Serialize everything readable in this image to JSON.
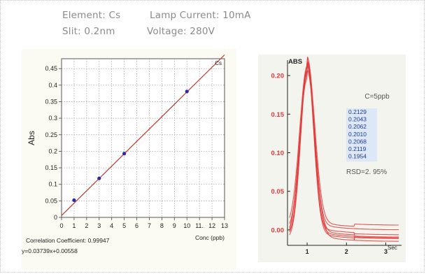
{
  "params": {
    "element": "Element: Cs",
    "lamp": "Lamp Current: 10mA",
    "slit": "Slit: 0.2nm",
    "voltage": "Voltage: 280V"
  },
  "colors": {
    "line": "#c0392b",
    "points": "#2a2aa8",
    "peak": "#e23a3a",
    "readings_text": "#1f3a93"
  },
  "chart_data": [
    {
      "type": "scatter",
      "title": "Cs",
      "xlabel": "Conc (ppb)",
      "ylabel": "Abs",
      "xlim": [
        0,
        13
      ],
      "ylim": [
        0,
        0.48
      ],
      "xticks": [
        "0",
        "1",
        "2",
        "3",
        "4",
        "5",
        "6",
        "7",
        "8",
        "9",
        "10",
        "11.",
        "12",
        "13"
      ],
      "yticks": [
        "0",
        "0.05",
        "0.1",
        "0.15",
        "0.2",
        "0.25",
        "0.3",
        "0.35",
        "0.4",
        "0.45"
      ],
      "grid": true,
      "points": [
        {
          "x": 1,
          "y": 0.052
        },
        {
          "x": 3,
          "y": 0.118
        },
        {
          "x": 5,
          "y": 0.193
        },
        {
          "x": 10,
          "y": 0.381
        }
      ],
      "fit": {
        "slope": 0.03739,
        "intercept": 0.00558
      },
      "correlation": "Correlation Coefficient: 0.99947",
      "equation": "y=0.03739x+0.00558"
    },
    {
      "type": "line",
      "ylabel": "ABS",
      "xlabel": "Sec",
      "xlim": [
        0.5,
        3.4
      ],
      "ylim": [
        -0.02,
        0.22
      ],
      "xticks": [
        "1",
        "2",
        "3"
      ],
      "yticks": [
        "0.00",
        "0.05",
        "0.10",
        "0.15",
        "0.20"
      ],
      "concentration": "C=5ppb",
      "readings": [
        "0.2129",
        "0.2043",
        "0.2062",
        "0.2010",
        "0.2068",
        "0.2119",
        "0.1954"
      ],
      "rsd": "RSD=2. 95%",
      "series": [
        {
          "peak": 0.2129,
          "baseline": -0.005
        },
        {
          "peak": 0.2043,
          "baseline": -0.012
        },
        {
          "peak": 0.2062,
          "baseline": -0.01
        },
        {
          "peak": 0.201,
          "baseline": 0.0
        },
        {
          "peak": 0.2068,
          "baseline": -0.008
        },
        {
          "peak": 0.2119,
          "baseline": 0.003
        },
        {
          "peak": 0.1954,
          "baseline": -0.015
        }
      ]
    }
  ]
}
